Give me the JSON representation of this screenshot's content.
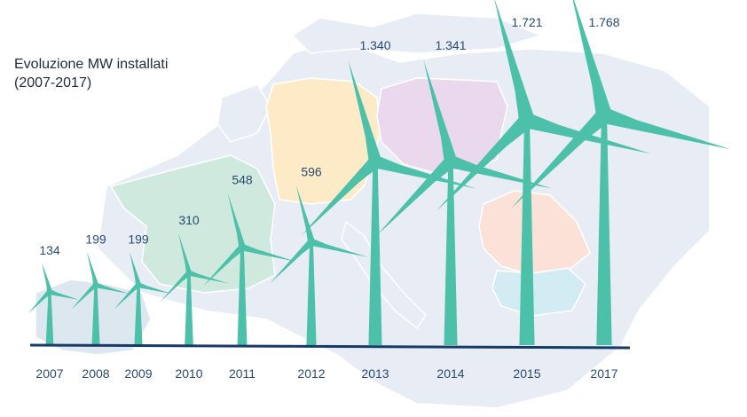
{
  "chart_data": {
    "type": "bar",
    "title_line1": "Evoluzione MW installati",
    "title_line2": "(2007-2017)",
    "categories": [
      "2007",
      "2008",
      "2009",
      "2010",
      "2011",
      "2012",
      "2013",
      "2014",
      "2015",
      "2017"
    ],
    "values": [
      134,
      199,
      199,
      310,
      548,
      596,
      1340,
      1341,
      1721,
      1768
    ],
    "value_labels": [
      "134",
      "199",
      "199",
      "310",
      "548",
      "596",
      "1.340",
      "1.341",
      "1.721",
      "1.768"
    ],
    "xlabel": "",
    "ylabel": "",
    "grid": false,
    "colors": {
      "turbine": "#4cc0a9",
      "baseline": "#173a66",
      "label": "#2a4a6e",
      "map": "#e8edf5",
      "spain": "#dce7ef",
      "france": "#cfe9df",
      "germany": "#fdebc8",
      "poland": "#ead8ec",
      "romania": "#fbe1d7",
      "bulgaria": "#d3ecf3"
    }
  }
}
